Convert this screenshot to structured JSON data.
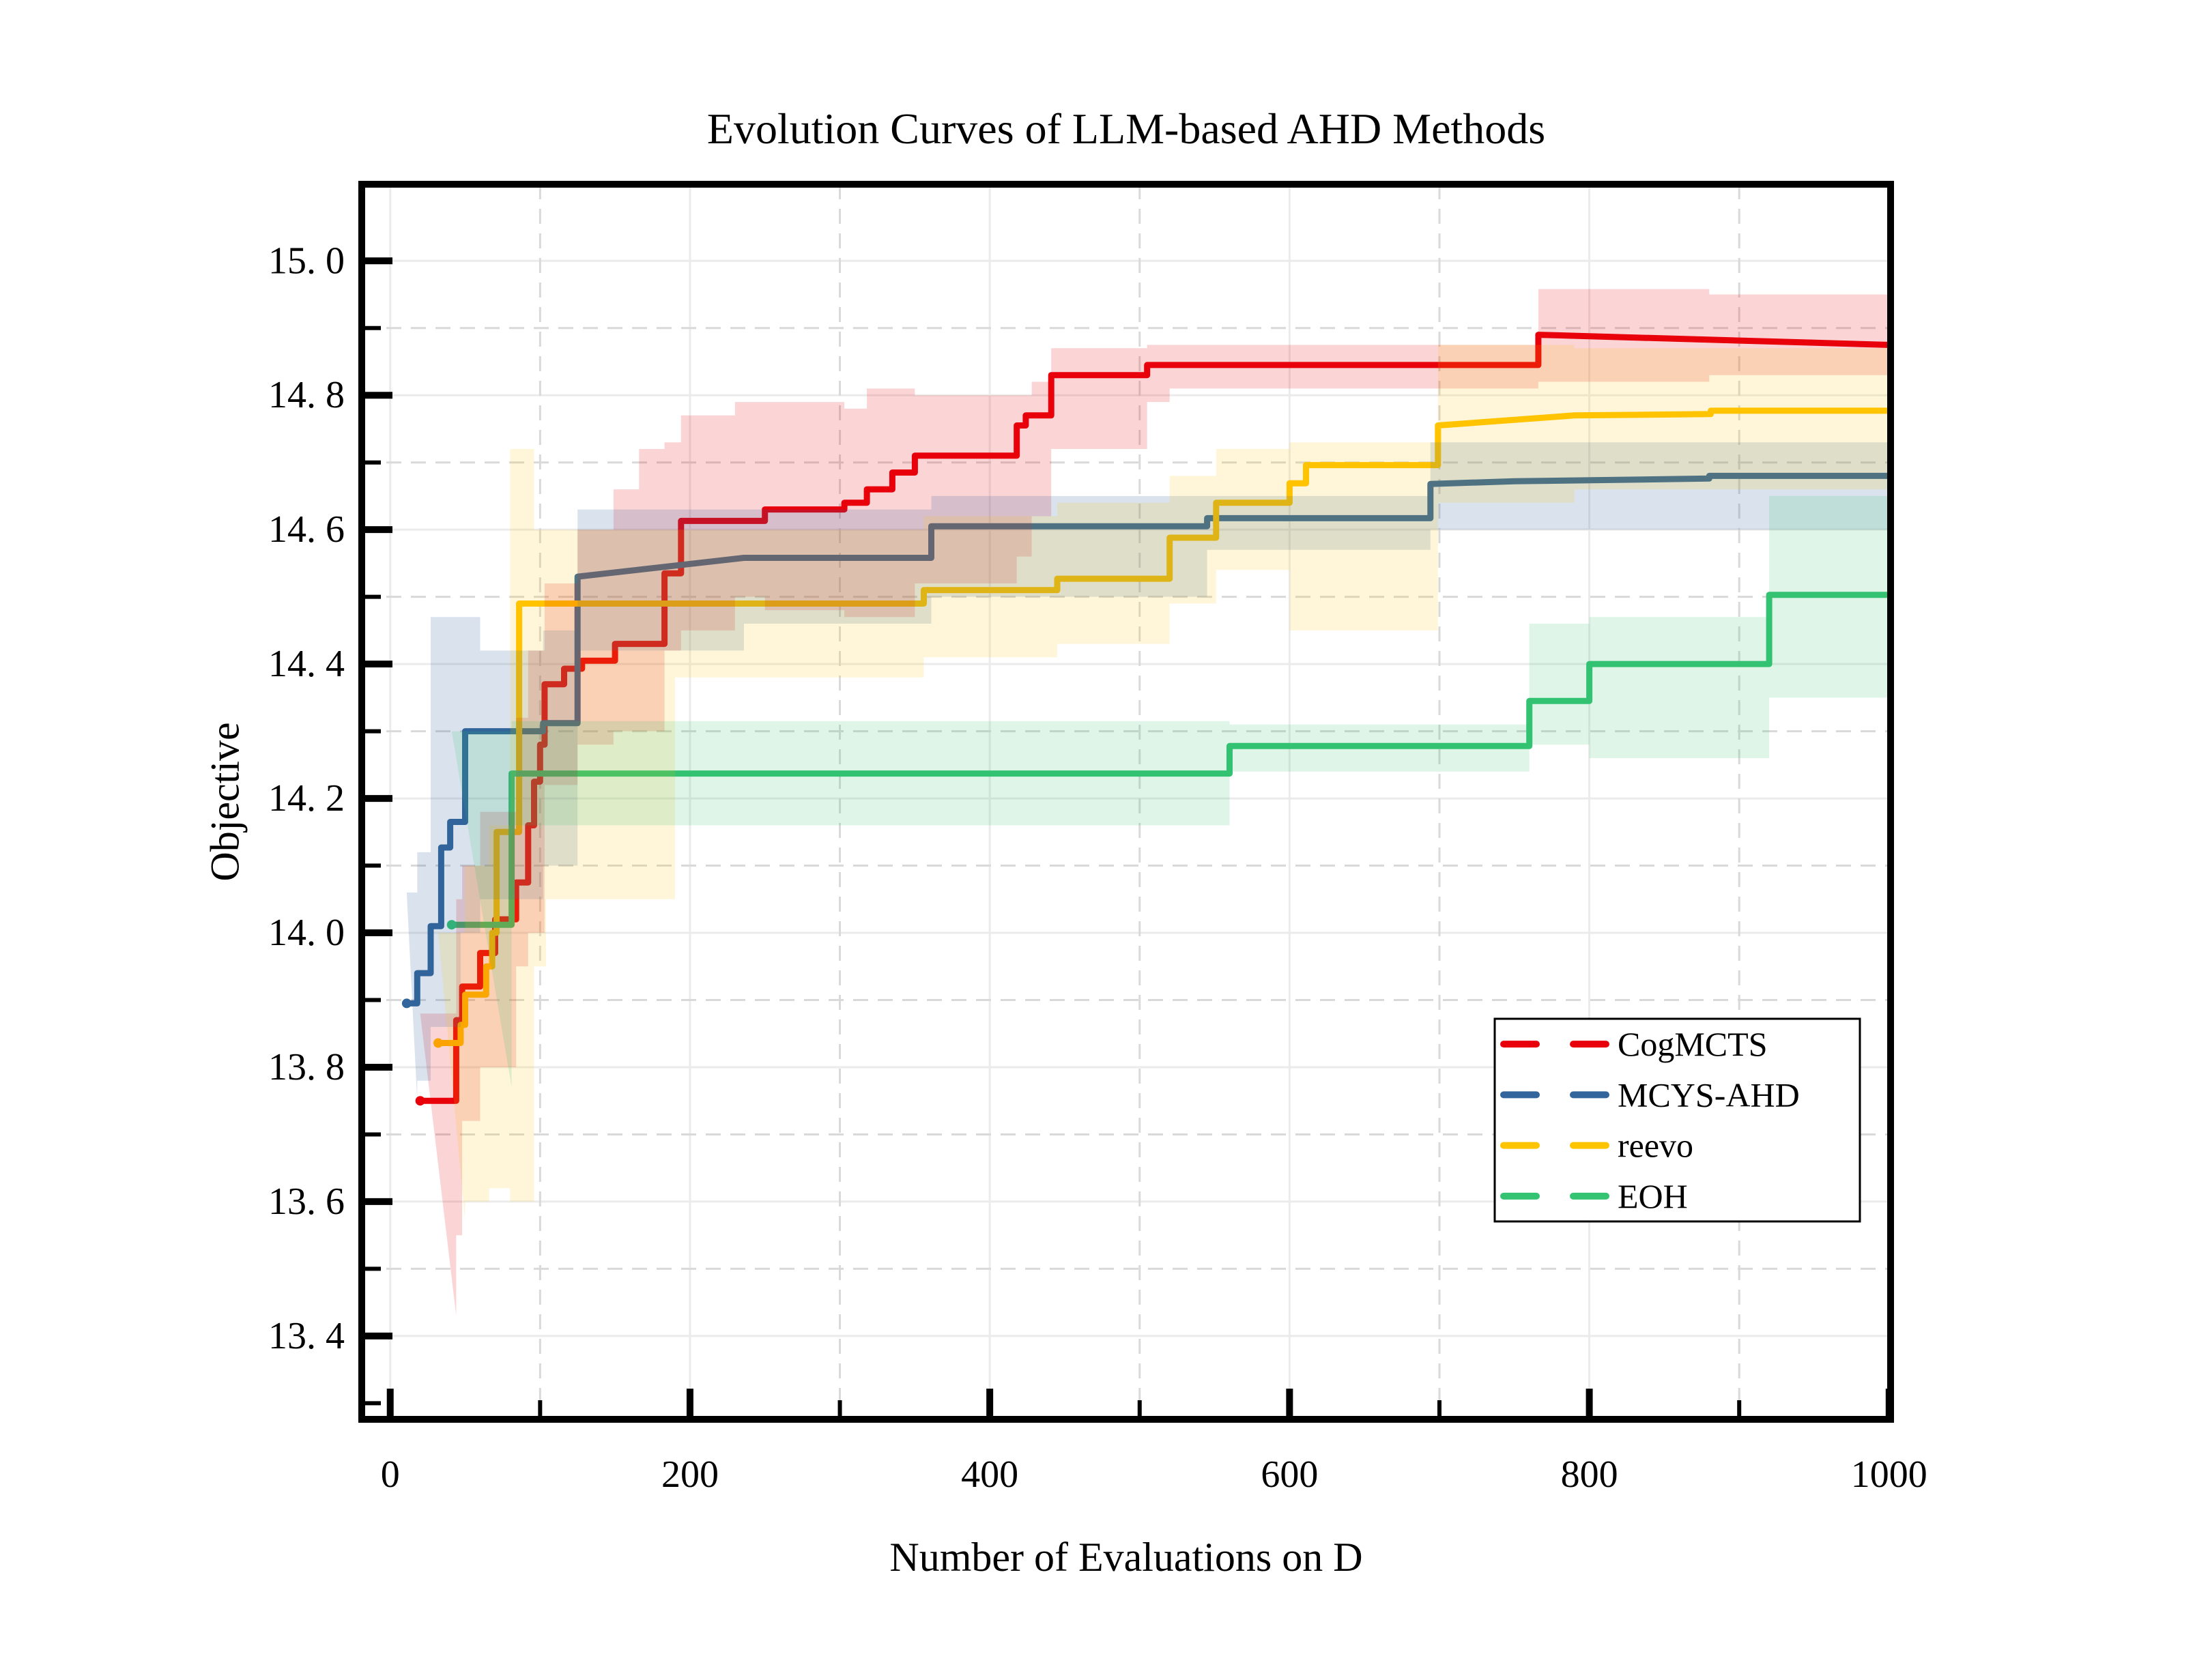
{
  "chart_data": {
    "type": "line",
    "step": true,
    "title": "Evolution Curves of LLM-based AHD Methods",
    "xlabel": "Number of Evaluations on D",
    "ylabel": "Objective",
    "xlim": [
      -19,
      1001
    ],
    "ylim": [
      13.276,
      15.114
    ],
    "background": "#ffffff",
    "grid": {
      "major_color": "#ebebeb",
      "minor_color": "#d9d9d9",
      "major_style": "solid",
      "minor_style": "dashed"
    },
    "axis": {
      "spine_color": "#000000",
      "x_major_ticks": [
        0,
        200,
        400,
        600,
        800,
        1000
      ],
      "x_major_labels": [
        "0",
        "200",
        "400",
        "600",
        "800",
        "1000"
      ],
      "x_minor_ticks": [
        100,
        300,
        500,
        700,
        900
      ],
      "y_major_ticks": [
        15.0,
        14.8,
        14.6,
        14.4,
        14.2,
        14.0,
        13.8,
        13.6,
        13.4
      ],
      "y_major_labels": [
        "15. 0",
        "14. 8",
        "14. 6",
        "14. 4",
        "14. 2",
        "14. 0",
        "13. 8",
        "13. 6",
        "13. 4"
      ],
      "y_minor_ticks": [
        14.9,
        14.7,
        14.5,
        14.3,
        14.1,
        13.9,
        13.7,
        13.5,
        13.3
      ]
    },
    "legend": {
      "position": "lower right",
      "entries": [
        "CogMCTS",
        "MCYS-AHD",
        "reevo",
        "EOH"
      ]
    },
    "series": [
      {
        "name": "CogMCTS",
        "color": "#E8000B",
        "band_opacity": 0.17,
        "points": [
          [
            20,
            13.75
          ],
          [
            44,
            13.75
          ],
          [
            44,
            13.87
          ],
          [
            48,
            13.87
          ],
          [
            48,
            13.92
          ],
          [
            60,
            13.92
          ],
          [
            60,
            13.97
          ],
          [
            70,
            13.97
          ],
          [
            70,
            14.02
          ],
          [
            84,
            14.02
          ],
          [
            84,
            14.075
          ],
          [
            92,
            14.075
          ],
          [
            92,
            14.16
          ],
          [
            96,
            14.16
          ],
          [
            96,
            14.225
          ],
          [
            100,
            14.225
          ],
          [
            100,
            14.28
          ],
          [
            103,
            14.28
          ],
          [
            103,
            14.37
          ],
          [
            116,
            14.37
          ],
          [
            116,
            14.393
          ],
          [
            128,
            14.393
          ],
          [
            128,
            14.405
          ],
          [
            150,
            14.405
          ],
          [
            150,
            14.43
          ],
          [
            183,
            14.43
          ],
          [
            183,
            14.535
          ],
          [
            194,
            14.535
          ],
          [
            194,
            14.613
          ],
          [
            250,
            14.613
          ],
          [
            250,
            14.63
          ],
          [
            303,
            14.63
          ],
          [
            303,
            14.64
          ],
          [
            318,
            14.64
          ],
          [
            318,
            14.66
          ],
          [
            335,
            14.66
          ],
          [
            335,
            14.685
          ],
          [
            350,
            14.685
          ],
          [
            350,
            14.71
          ],
          [
            418,
            14.71
          ],
          [
            418,
            14.755
          ],
          [
            424,
            14.755
          ],
          [
            424,
            14.77
          ],
          [
            441,
            14.77
          ],
          [
            441,
            14.83
          ],
          [
            505,
            14.83
          ],
          [
            505,
            14.845
          ],
          [
            766,
            14.845
          ],
          [
            766,
            14.89
          ],
          [
            1000,
            14.875
          ]
        ],
        "band": [
          [
            20,
            13.43,
            13.88
          ],
          [
            44,
            13.55,
            14.05
          ],
          [
            48,
            13.72,
            14.1
          ],
          [
            60,
            13.8,
            14.18
          ],
          [
            84,
            13.95,
            14.32
          ],
          [
            92,
            14.0,
            14.42
          ],
          [
            103,
            14.22,
            14.52
          ],
          [
            125,
            14.28,
            14.6
          ],
          [
            149,
            14.3,
            14.66
          ],
          [
            166,
            14.3,
            14.72
          ],
          [
            183,
            14.42,
            14.73
          ],
          [
            194,
            14.45,
            14.77
          ],
          [
            230,
            14.5,
            14.79
          ],
          [
            250,
            14.48,
            14.79
          ],
          [
            303,
            14.47,
            14.78
          ],
          [
            318,
            14.47,
            14.81
          ],
          [
            350,
            14.52,
            14.8
          ],
          [
            418,
            14.56,
            14.8
          ],
          [
            428,
            14.62,
            14.82
          ],
          [
            441,
            14.72,
            14.87
          ],
          [
            505,
            14.79,
            14.875
          ],
          [
            520,
            14.81,
            14.875
          ],
          [
            766,
            14.82,
            14.958
          ],
          [
            880,
            14.83,
            14.95
          ],
          [
            1000,
            14.845,
            14.937
          ]
        ]
      },
      {
        "name": "MCYS-AHD",
        "color": "#31659B",
        "band_opacity": 0.18,
        "points": [
          [
            11,
            13.895
          ],
          [
            18,
            13.895
          ],
          [
            18,
            13.94
          ],
          [
            27,
            13.94
          ],
          [
            27,
            14.01
          ],
          [
            34,
            14.01
          ],
          [
            34,
            14.127
          ],
          [
            40,
            14.127
          ],
          [
            40,
            14.165
          ],
          [
            50,
            14.165
          ],
          [
            50,
            14.3
          ],
          [
            102,
            14.3
          ],
          [
            102,
            14.312
          ],
          [
            125,
            14.312
          ],
          [
            125,
            14.53
          ],
          [
            236,
            14.558
          ],
          [
            361,
            14.558
          ],
          [
            361,
            14.605
          ],
          [
            545,
            14.605
          ],
          [
            545,
            14.617
          ],
          [
            694,
            14.617
          ],
          [
            694,
            14.668
          ],
          [
            750,
            14.672
          ],
          [
            880,
            14.676
          ],
          [
            880,
            14.68
          ],
          [
            1000,
            14.68
          ]
        ],
        "band": [
          [
            11,
            13.75,
            14.06
          ],
          [
            18,
            13.78,
            14.12
          ],
          [
            27,
            13.86,
            14.47
          ],
          [
            47,
            14.0,
            14.47
          ],
          [
            60,
            14.05,
            14.42
          ],
          [
            102,
            14.1,
            14.45
          ],
          [
            125,
            14.42,
            14.63
          ],
          [
            236,
            14.46,
            14.63
          ],
          [
            361,
            14.5,
            14.65
          ],
          [
            545,
            14.57,
            14.65
          ],
          [
            694,
            14.6,
            14.73
          ],
          [
            880,
            14.6,
            14.73
          ],
          [
            1000,
            14.61,
            14.72
          ]
        ]
      },
      {
        "name": "reevo",
        "color": "#FFC400",
        "band_opacity": 0.15,
        "points": [
          [
            32,
            13.836
          ],
          [
            47,
            13.836
          ],
          [
            47,
            13.863
          ],
          [
            50,
            13.863
          ],
          [
            50,
            13.908
          ],
          [
            64,
            13.908
          ],
          [
            64,
            13.95
          ],
          [
            68,
            13.95
          ],
          [
            68,
            14.0
          ],
          [
            71,
            14.0
          ],
          [
            71,
            14.15
          ],
          [
            86,
            14.15
          ],
          [
            86,
            14.49
          ],
          [
            356,
            14.49
          ],
          [
            356,
            14.51
          ],
          [
            445,
            14.51
          ],
          [
            445,
            14.527
          ],
          [
            520,
            14.527
          ],
          [
            520,
            14.588
          ],
          [
            551,
            14.588
          ],
          [
            551,
            14.64
          ],
          [
            600,
            14.64
          ],
          [
            600,
            14.669
          ],
          [
            611,
            14.669
          ],
          [
            611,
            14.696
          ],
          [
            699,
            14.696
          ],
          [
            699,
            14.755
          ],
          [
            790,
            14.77
          ],
          [
            881,
            14.772
          ],
          [
            881,
            14.777
          ],
          [
            1000,
            14.777
          ]
        ],
        "band": [
          [
            32,
            13.57,
            14.0
          ],
          [
            50,
            13.6,
            14.1
          ],
          [
            66,
            13.62,
            14.16
          ],
          [
            80,
            13.6,
            14.72
          ],
          [
            96,
            13.95,
            14.6
          ],
          [
            104,
            14.05,
            14.6
          ],
          [
            190,
            14.38,
            14.6
          ],
          [
            356,
            14.41,
            14.62
          ],
          [
            445,
            14.43,
            14.64
          ],
          [
            520,
            14.49,
            14.68
          ],
          [
            551,
            14.54,
            14.72
          ],
          [
            600,
            14.45,
            14.73
          ],
          [
            699,
            14.64,
            14.875
          ],
          [
            790,
            14.66,
            14.87
          ],
          [
            1000,
            14.66,
            14.87
          ]
        ]
      },
      {
        "name": "EOH",
        "color": "#33C373",
        "band_opacity": 0.16,
        "points": [
          [
            41,
            14.012
          ],
          [
            81,
            14.012
          ],
          [
            81,
            14.237
          ],
          [
            560,
            14.237
          ],
          [
            560,
            14.278
          ],
          [
            760,
            14.278
          ],
          [
            760,
            14.345
          ],
          [
            800,
            14.345
          ],
          [
            800,
            14.4
          ],
          [
            920,
            14.4
          ],
          [
            920,
            14.503
          ],
          [
            1000,
            14.503
          ]
        ],
        "band": [
          [
            41,
            13.77,
            14.3
          ],
          [
            81,
            14.16,
            14.315
          ],
          [
            560,
            14.24,
            14.31
          ],
          [
            760,
            14.28,
            14.46
          ],
          [
            800,
            14.26,
            14.47
          ],
          [
            920,
            14.35,
            14.65
          ],
          [
            1000,
            14.35,
            14.65
          ]
        ]
      }
    ]
  }
}
